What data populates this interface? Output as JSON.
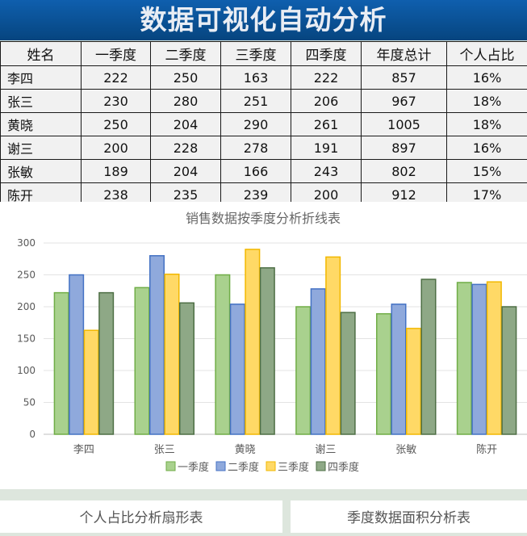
{
  "title": "数据可视化自动分析",
  "table": {
    "headers": [
      "姓名",
      "一季度",
      "二季度",
      "三季度",
      "四季度",
      "年度总计",
      "个人占比"
    ],
    "rows": [
      [
        "李四",
        "222",
        "250",
        "163",
        "222",
        "857",
        "16%"
      ],
      [
        "张三",
        "230",
        "280",
        "251",
        "206",
        "967",
        "18%"
      ],
      [
        "黄晓",
        "250",
        "204",
        "290",
        "261",
        "1005",
        "18%"
      ],
      [
        "谢三",
        "200",
        "228",
        "278",
        "191",
        "897",
        "16%"
      ],
      [
        "张敏",
        "189",
        "204",
        "166",
        "243",
        "802",
        "15%"
      ],
      [
        "陈开",
        "238",
        "235",
        "239",
        "200",
        "912",
        "17%"
      ]
    ]
  },
  "chart_data": {
    "type": "bar",
    "title": "销售数据按季度分析折线表",
    "categories": [
      "李四",
      "张三",
      "黄晓",
      "谢三",
      "张敏",
      "陈开"
    ],
    "series": [
      {
        "name": "一季度",
        "values": [
          222,
          230,
          250,
          200,
          189,
          238
        ],
        "color": "#a9d18e",
        "stroke": "#70ad47"
      },
      {
        "name": "二季度",
        "values": [
          250,
          280,
          204,
          228,
          204,
          235
        ],
        "color": "#8fa9dc",
        "stroke": "#4472c4"
      },
      {
        "name": "三季度",
        "values": [
          163,
          251,
          290,
          278,
          166,
          239
        ],
        "color": "#ffd966",
        "stroke": "#f2b800"
      },
      {
        "name": "四季度",
        "values": [
          222,
          206,
          261,
          191,
          243,
          200
        ],
        "color": "#8ea886",
        "stroke": "#4e6f45"
      }
    ],
    "ylim": [
      0,
      300
    ],
    "yticks": [
      0,
      50,
      100,
      150,
      200,
      250,
      300
    ],
    "grid": true,
    "legend": "bottom"
  },
  "panels": {
    "left_title": "个人占比分析扇形表",
    "right_title": "季度数据面积分析表"
  }
}
